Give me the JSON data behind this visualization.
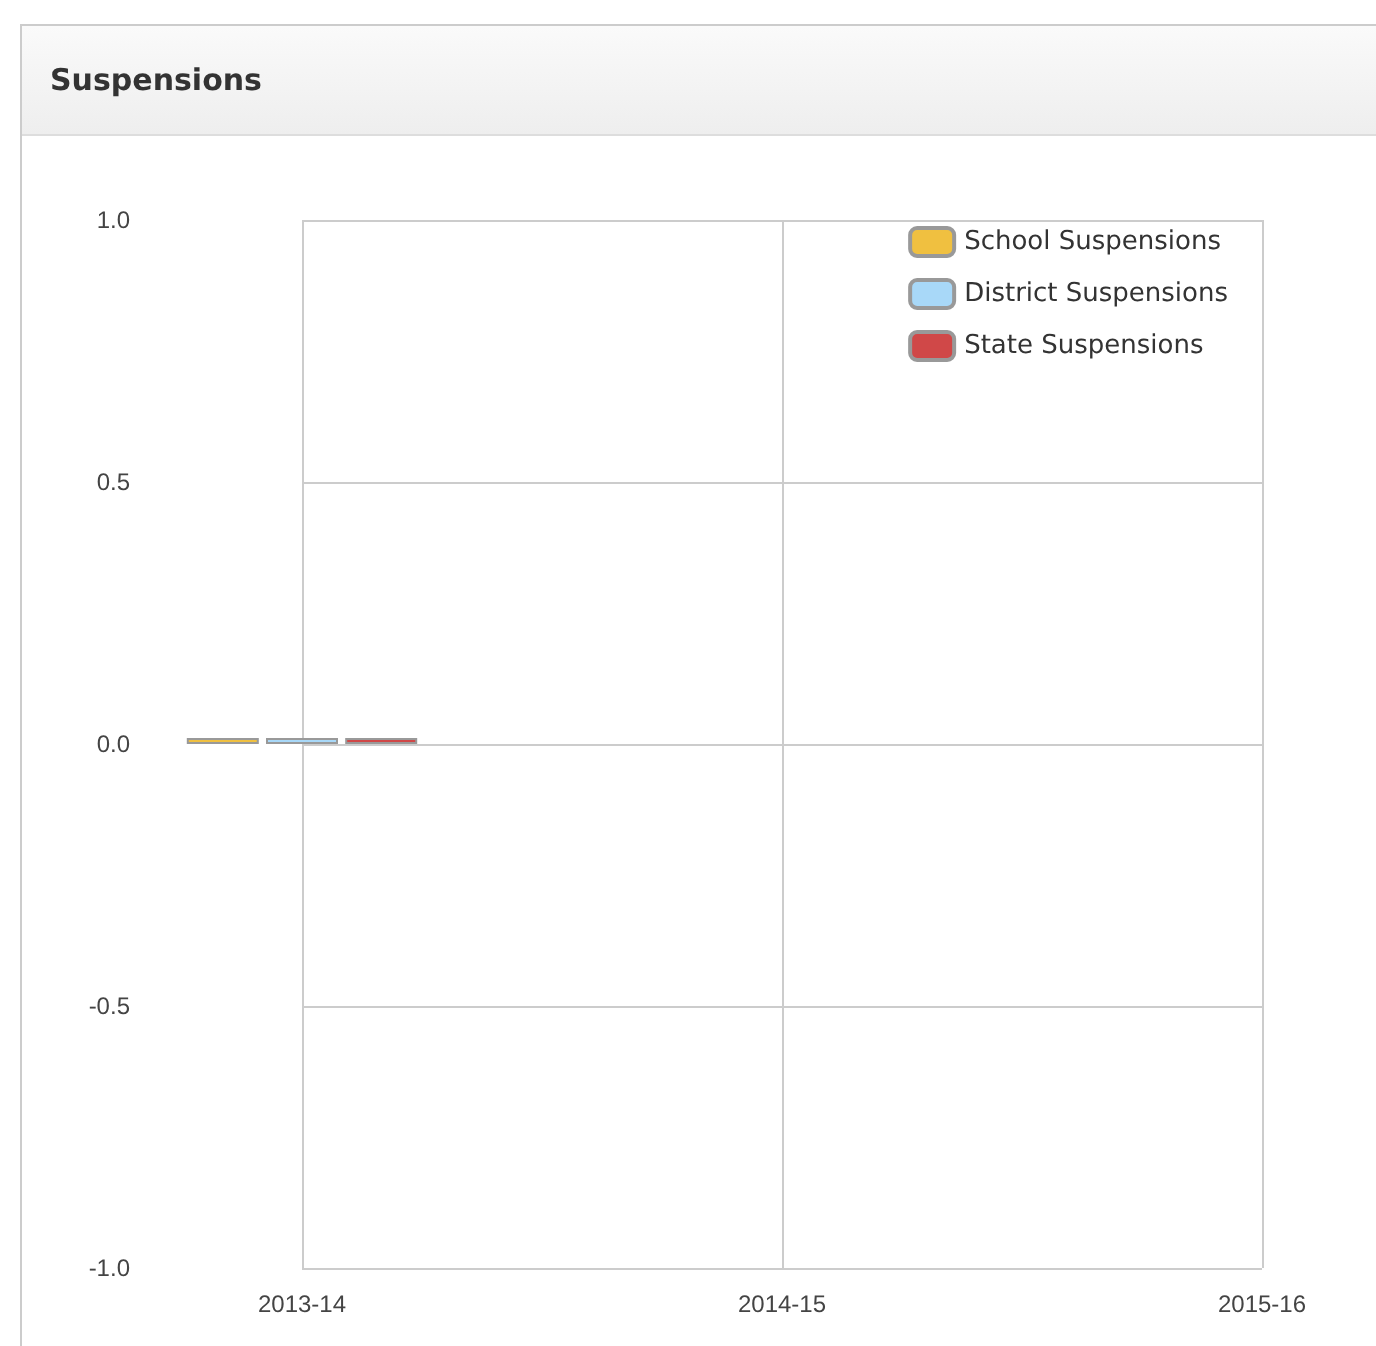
{
  "chart_data": {
    "type": "bar",
    "title": "Suspensions",
    "categories": [
      "2013-14",
      "2014-15",
      "2015-16"
    ],
    "series": [
      {
        "name": "School Suspensions",
        "color": "#f0c040",
        "values": [
          0,
          null,
          null
        ]
      },
      {
        "name": "District Suspensions",
        "color": "#a8d8f8",
        "values": [
          0,
          null,
          null
        ]
      },
      {
        "name": "State Suspensions",
        "color": "#d04848",
        "values": [
          0,
          null,
          null
        ]
      }
    ],
    "ylim": [
      -1,
      1
    ],
    "yticks": [
      {
        "value": -1,
        "label": "-1.0"
      },
      {
        "value": -0.5,
        "label": "-0.5"
      },
      {
        "value": 0,
        "label": "0.0"
      },
      {
        "value": 0.5,
        "label": "0.5"
      },
      {
        "value": 1,
        "label": "1.0"
      }
    ],
    "grid": true,
    "legend": "top right"
  }
}
